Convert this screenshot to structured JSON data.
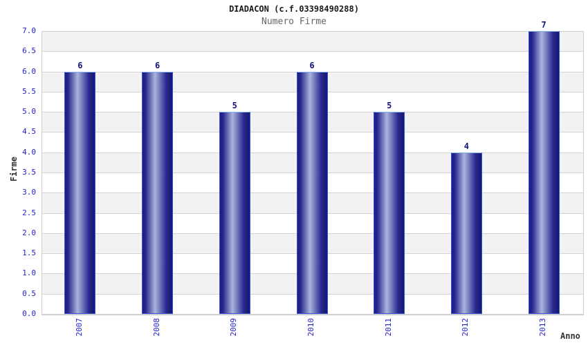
{
  "chart_data": {
    "type": "bar",
    "title": "DIADACON (c.f.03398490288)",
    "subtitle": "Numero Firme",
    "xlabel": "Anno",
    "ylabel": "Firme",
    "categories": [
      "2007",
      "2008",
      "2009",
      "2010",
      "2011",
      "2012",
      "2013"
    ],
    "values": [
      6,
      6,
      5,
      6,
      5,
      4,
      7
    ],
    "ylim": [
      0,
      7
    ],
    "ytick_step": 0.5,
    "yticks": [
      "7.0",
      "6.5",
      "6.0",
      "5.5",
      "5.0",
      "4.5",
      "4.0",
      "3.5",
      "3.0",
      "2.5",
      "2.0",
      "1.5",
      "1.0",
      "0.5",
      "0.0"
    ],
    "grid": "horizontal-bands-alternating",
    "legend": "none"
  },
  "colors": {
    "title": "#1a1a1a",
    "subtitle": "#666666",
    "tick_label": "#2222cc",
    "value_label": "#13137d",
    "axis_title": "#333333",
    "band_gray": "#f2f2f2",
    "band_white": "#ffffff",
    "gridline": "#d4d4d4",
    "bar_dark": "#1c1c85",
    "bar_highlight": "#abb3dd",
    "bar_border": "#3a55d4",
    "bar_border_top": "#85b2e8"
  }
}
